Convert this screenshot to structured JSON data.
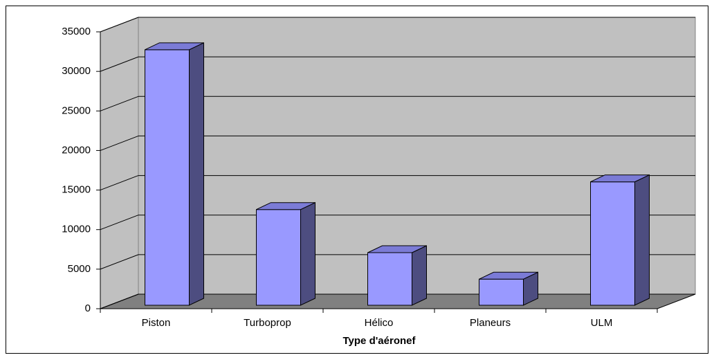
{
  "chart_data": {
    "type": "bar",
    "x_label": "Type d'aéronef",
    "categories": [
      "Piston",
      "Turboprop",
      "Hélico",
      "Planeurs",
      "ULM"
    ],
    "values": [
      32300,
      12100,
      6650,
      3300,
      15600
    ],
    "color": "#9999ff",
    "ylim": [
      0,
      35000
    ],
    "yticks": [
      0,
      5000,
      10000,
      15000,
      20000,
      25000,
      30000,
      35000
    ],
    "grid": true
  }
}
